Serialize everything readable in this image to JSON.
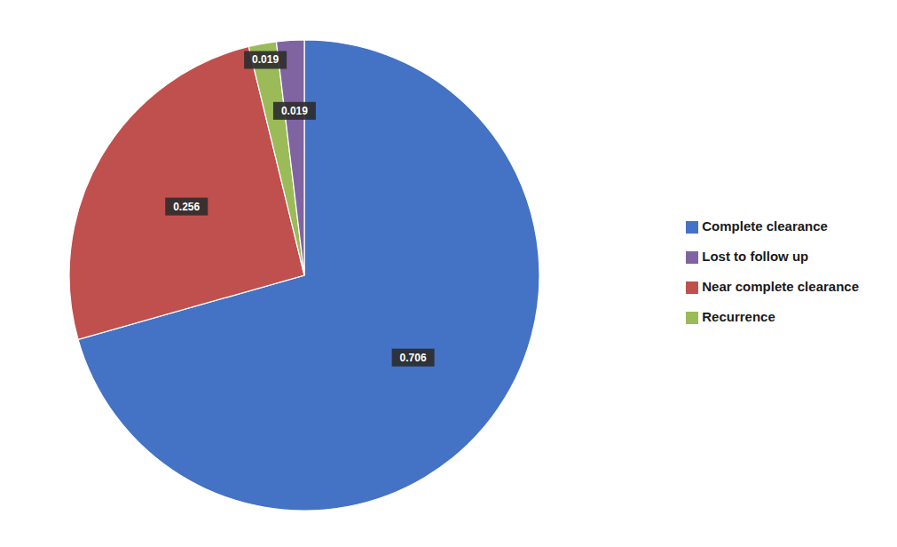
{
  "chart_data": {
    "type": "pie",
    "categories": [
      "Complete clearance",
      "Near complete clearance",
      "Recurrence",
      "Lost to follow up"
    ],
    "values": [
      0.706,
      0.256,
      0.019,
      0.019
    ],
    "colors": [
      "#4472C4",
      "#C0504D",
      "#9BBB59",
      "#8064A2"
    ],
    "data_labels": true,
    "legend": "right"
  }
}
